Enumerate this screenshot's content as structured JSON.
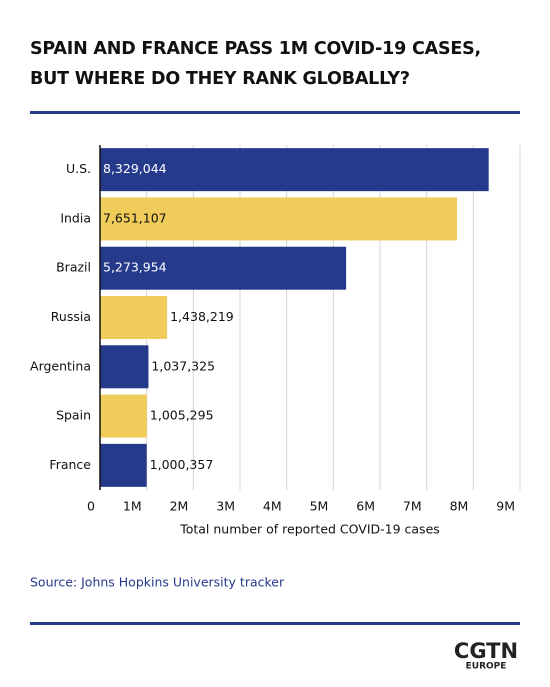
{
  "title": "SPAIN AND FRANCE PASS 1M COVID-19 CASES, BUT WHERE DO THEY RANK GLOBALLY?",
  "source": "Source: Johns Hopkins University tracker",
  "logo": {
    "brand": "CGTN",
    "region": "EUROPE"
  },
  "chart_data": {
    "type": "barh",
    "categories": [
      "U.S.",
      "India",
      "Brazil",
      "Russia",
      "Argentina",
      "Spain",
      "France"
    ],
    "values": [
      8329044,
      7651107,
      5273954,
      1438219,
      1037325,
      1005295,
      1000357
    ],
    "value_labels": [
      "8,329,044",
      "7,651,107",
      "5,273,954",
      "1,438,219",
      "1,037,325",
      "1,005,295",
      "1,000,357"
    ],
    "colors": [
      "#263a8c",
      "#f0cd5a",
      "#263a8c",
      "#f0cd5a",
      "#263a8c",
      "#f0cd5a",
      "#263a8c"
    ],
    "xlabel": "Total number of reported COVID-19 cases",
    "xlim": [
      0,
      9000000
    ],
    "xticks": [
      0,
      {
        "value": 1000000,
        "label": "1M"
      },
      {
        "value": 2000000,
        "label": "2M"
      },
      {
        "value": 3000000,
        "label": "3M"
      },
      {
        "value": 4000000,
        "label": "4M"
      },
      {
        "value": 5000000,
        "label": "5M"
      },
      {
        "value": 6000000,
        "label": "6M"
      },
      {
        "value": 7000000,
        "label": "7M"
      },
      {
        "value": 8000000,
        "label": "8M"
      },
      {
        "value": 9000000,
        "label": "9M"
      }
    ],
    "grid": true
  }
}
